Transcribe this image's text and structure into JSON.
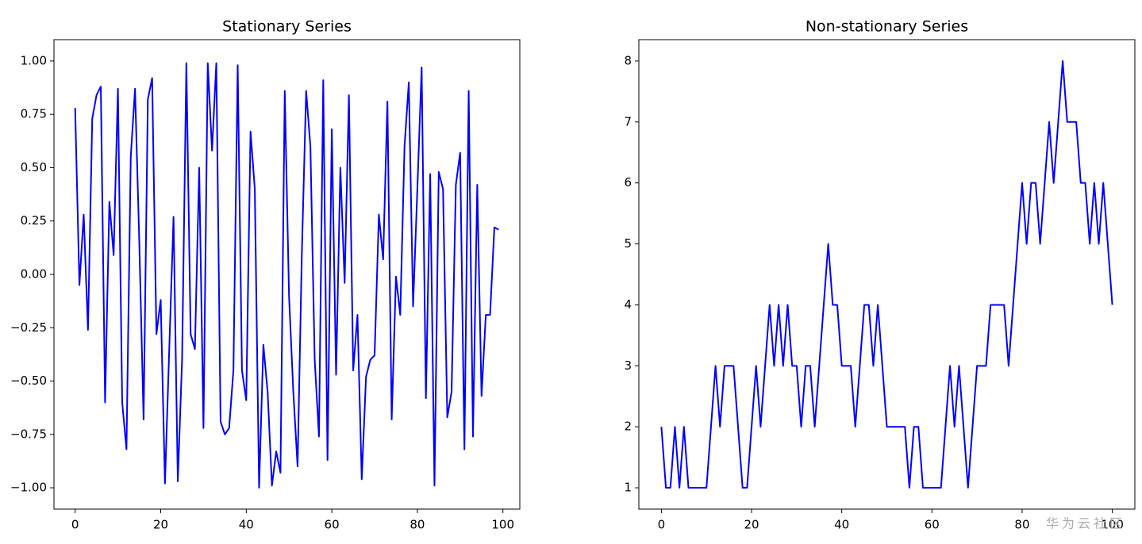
{
  "chart_data": [
    {
      "type": "line",
      "title": "Stationary Series",
      "x": [
        0,
        1,
        2,
        3,
        4,
        5,
        6,
        7,
        8,
        9,
        10,
        11,
        12,
        13,
        14,
        15,
        16,
        17,
        18,
        19,
        20,
        21,
        22,
        23,
        24,
        25,
        26,
        27,
        28,
        29,
        30,
        31,
        32,
        33,
        34,
        35,
        36,
        37,
        38,
        39,
        40,
        41,
        42,
        43,
        44,
        45,
        46,
        47,
        48,
        49,
        50,
        51,
        52,
        53,
        54,
        55,
        56,
        57,
        58,
        59,
        60,
        61,
        62,
        63,
        64,
        65,
        66,
        67,
        68,
        69,
        70,
        71,
        72,
        73,
        74,
        75,
        76,
        77,
        78,
        79,
        80,
        81,
        82,
        83,
        84,
        85,
        86,
        87,
        88,
        89,
        90,
        91,
        92,
        93,
        94,
        95,
        96,
        97,
        98,
        99
      ],
      "series": [
        {
          "color": "#0000ff",
          "values": [
            0.78,
            -0.05,
            0.28,
            -0.26,
            0.73,
            0.84,
            0.88,
            -0.6,
            0.34,
            0.09,
            0.87,
            -0.6,
            -0.82,
            0.55,
            0.87,
            0.15,
            -0.68,
            0.82,
            0.92,
            -0.28,
            -0.12,
            -0.98,
            -0.35,
            0.27,
            -0.97,
            -0.4,
            0.99,
            -0.28,
            -0.35,
            0.5,
            -0.72,
            0.99,
            0.58,
            0.99,
            -0.69,
            -0.75,
            -0.72,
            -0.45,
            0.98,
            -0.45,
            -0.59,
            0.67,
            0.4,
            -1.0,
            -0.33,
            -0.55,
            -0.99,
            -0.83,
            -0.93,
            0.86,
            -0.1,
            -0.55,
            -0.9,
            0.1,
            0.86,
            0.6,
            -0.4,
            -0.76,
            0.91,
            -0.87,
            0.68,
            -0.47,
            0.5,
            -0.04,
            0.84,
            -0.45,
            -0.19,
            -0.96,
            -0.48,
            -0.4,
            -0.38,
            0.28,
            0.07,
            0.81,
            -0.68,
            -0.01,
            -0.19,
            0.6,
            0.9,
            -0.15,
            0.4,
            0.97,
            -0.58,
            0.47,
            -0.99,
            0.48,
            0.4,
            -0.67,
            -0.55,
            0.42,
            0.57,
            -0.82,
            0.86,
            -0.76,
            0.42,
            -0.57,
            -0.19,
            -0.19,
            0.22,
            0.21
          ]
        }
      ],
      "xlim": [
        -4.95,
        103.95
      ],
      "xticks": [
        0,
        20,
        40,
        60,
        80,
        100
      ],
      "ylim": [
        -1.1,
        1.1
      ],
      "yticks": [
        {
          "value": -1,
          "label": "−1.00"
        },
        {
          "value": -0.75,
          "label": "−0.75"
        },
        {
          "value": -0.5,
          "label": "−0.50"
        },
        {
          "value": -0.25,
          "label": "−0.25"
        },
        {
          "value": 0,
          "label": "0.00"
        },
        {
          "value": 0.25,
          "label": "0.25"
        },
        {
          "value": 0.5,
          "label": "0.50"
        },
        {
          "value": 0.75,
          "label": "0.75"
        },
        {
          "value": 1,
          "label": "1.00"
        }
      ],
      "grid": false
    },
    {
      "type": "line",
      "title": "Non-stationary Series",
      "x": [
        0,
        1,
        2,
        3,
        4,
        5,
        6,
        7,
        8,
        9,
        10,
        11,
        12,
        13,
        14,
        15,
        16,
        17,
        18,
        19,
        20,
        21,
        22,
        23,
        24,
        25,
        26,
        27,
        28,
        29,
        30,
        31,
        32,
        33,
        34,
        35,
        36,
        37,
        38,
        39,
        40,
        41,
        42,
        43,
        44,
        45,
        46,
        47,
        48,
        49,
        50,
        51,
        52,
        53,
        54,
        55,
        56,
        57,
        58,
        59,
        60,
        61,
        62,
        63,
        64,
        65,
        66,
        67,
        68,
        69,
        70,
        71,
        72,
        73,
        74,
        75,
        76,
        77,
        78,
        79,
        80,
        81,
        82,
        83,
        84,
        85,
        86,
        87,
        88,
        89,
        90,
        91,
        92,
        93,
        94,
        95,
        96,
        97,
        98,
        99,
        100
      ],
      "series": [
        {
          "color": "#0000ff",
          "values": [
            2,
            1,
            1,
            2,
            1,
            2,
            1,
            1,
            1,
            1,
            1,
            2,
            3,
            2,
            3,
            3,
            3,
            2,
            1,
            1,
            2,
            3,
            2,
            3,
            4,
            3,
            4,
            3,
            4,
            3,
            3,
            2,
            3,
            3,
            2,
            3,
            4,
            5,
            4,
            4,
            3,
            3,
            3,
            2,
            3,
            4,
            4,
            3,
            4,
            3,
            2,
            2,
            2,
            2,
            2,
            1,
            2,
            2,
            1,
            1,
            1,
            1,
            1,
            2,
            3,
            2,
            3,
            2,
            1,
            2,
            3,
            3,
            3,
            4,
            4,
            4,
            4,
            3,
            4,
            5,
            6,
            5,
            6,
            6,
            5,
            6,
            7,
            6,
            7,
            8,
            7,
            7,
            7,
            6,
            6,
            5,
            6,
            5,
            6,
            5,
            4
          ]
        }
      ],
      "xlim": [
        -5,
        105
      ],
      "xticks": [
        0,
        20,
        40,
        60,
        80,
        100
      ],
      "ylim": [
        0.65,
        8.35
      ],
      "yticks": [
        1,
        2,
        3,
        4,
        5,
        6,
        7,
        8
      ],
      "grid": false
    }
  ],
  "watermark": "华为云社区"
}
